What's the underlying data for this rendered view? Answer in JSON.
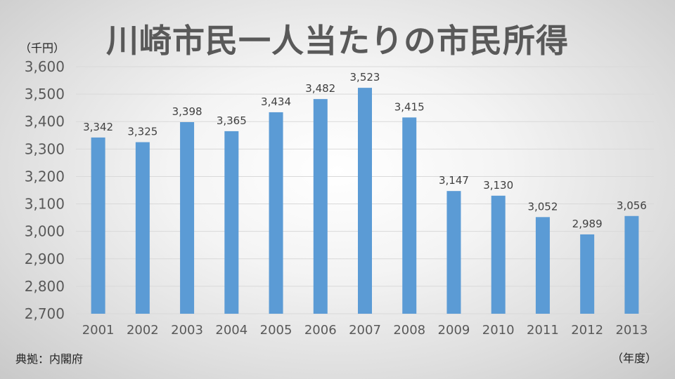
{
  "chart_data": {
    "type": "bar",
    "title": "川崎市民一人当たりの市民所得",
    "ylabel": "（千円）",
    "xlabel": "（年度）",
    "source": "典拠：内閣府",
    "categories": [
      "2001",
      "2002",
      "2003",
      "2004",
      "2005",
      "2006",
      "2007",
      "2008",
      "2009",
      "2010",
      "2011",
      "2012",
      "2013"
    ],
    "values": [
      3342,
      3325,
      3398,
      3365,
      3434,
      3482,
      3523,
      3415,
      3147,
      3130,
      3052,
      2989,
      3056
    ],
    "value_labels": [
      "3,342",
      "3,325",
      "3,398",
      "3,365",
      "3,434",
      "3,482",
      "3,523",
      "3,415",
      "3,147",
      "3,130",
      "3,052",
      "2,989",
      "3,056"
    ],
    "yticks": [
      "2,700",
      "2,800",
      "2,900",
      "3,000",
      "3,100",
      "3,200",
      "3,300",
      "3,400",
      "3,500",
      "3,600"
    ],
    "ylim": [
      2700,
      3600
    ],
    "grid": true,
    "legend": "none",
    "bar_color": "#5B9BD5",
    "grid_color": "#D9D9D9"
  }
}
